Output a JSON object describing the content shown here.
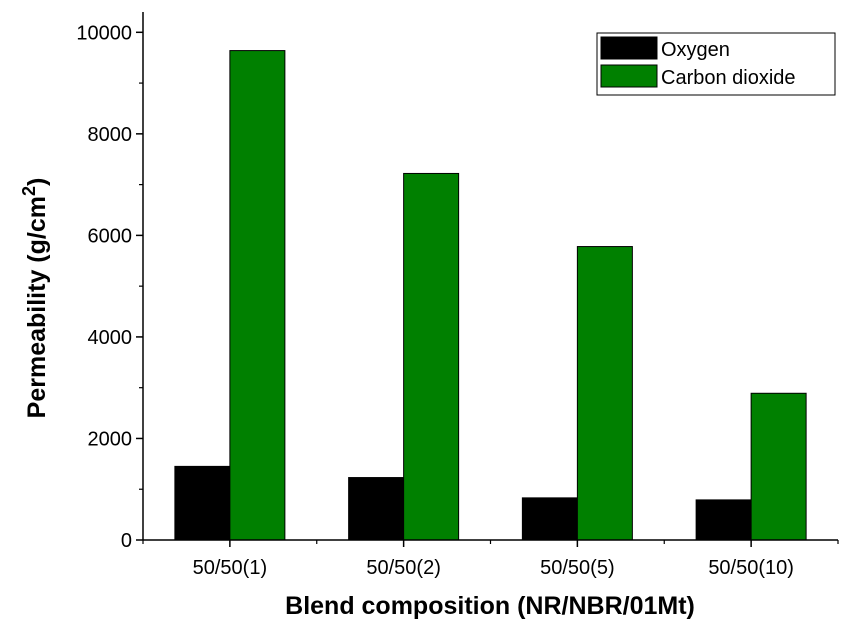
{
  "chart_data": {
    "type": "bar",
    "title": "",
    "xlabel": "Blend composition (NR/NBR/01Mt)",
    "ylabel": "Permeability (g/cm",
    "ylabel_superscript": "2",
    "ylabel_close": ")",
    "categories": [
      "50/50(1)",
      "50/50(2)",
      "50/50(5)",
      "50/50(10)"
    ],
    "series": [
      {
        "name": "Oxygen",
        "values": [
          1450,
          1230,
          830,
          790
        ],
        "color": "#000000"
      },
      {
        "name": "Carbon dioxide",
        "values": [
          9640,
          7220,
          5780,
          2890
        ],
        "color": "#008000"
      }
    ],
    "ylim": [
      0,
      10400
    ],
    "yticks": [
      0,
      2000,
      4000,
      6000,
      8000,
      10000
    ],
    "grid": false,
    "legend_position": "top-right"
  }
}
